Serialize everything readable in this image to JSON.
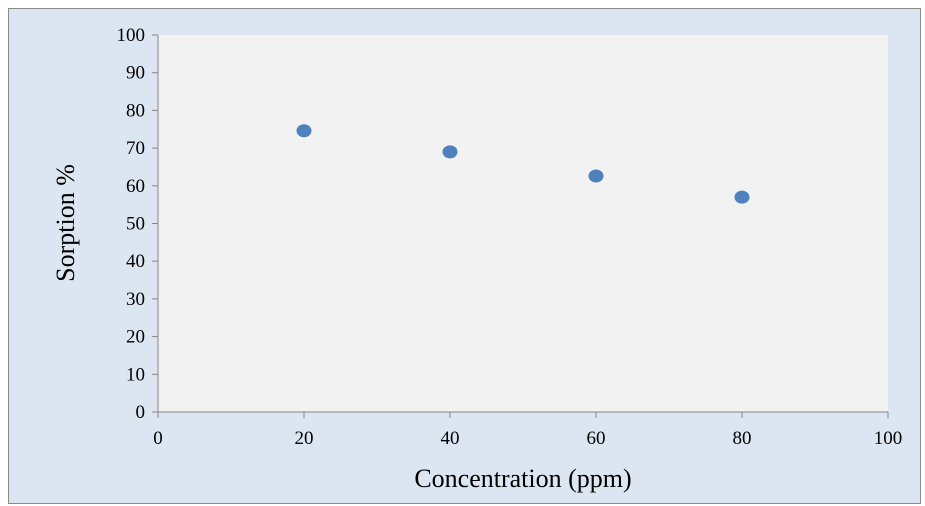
{
  "chart_data": {
    "type": "scatter",
    "title": "",
    "xlabel": "Concentration (ppm)",
    "ylabel": "Sorption %",
    "xlim": [
      0,
      100
    ],
    "ylim": [
      0,
      100
    ],
    "xticks": [
      "0",
      "20",
      "40",
      "60",
      "80",
      "100"
    ],
    "yticks": [
      "0",
      "10",
      "20",
      "30",
      "40",
      "50",
      "60",
      "70",
      "80",
      "90",
      "100"
    ],
    "grid": false,
    "legend": "none",
    "series": [
      {
        "x": [
          20,
          40,
          60,
          80
        ],
        "y": [
          74.6,
          69,
          62.6,
          57
        ]
      }
    ],
    "colors": {
      "outer_background": "#dce6f2",
      "plot_background": "#f2f2f2",
      "marker": "#4f81bd",
      "axis": "#868686"
    }
  }
}
